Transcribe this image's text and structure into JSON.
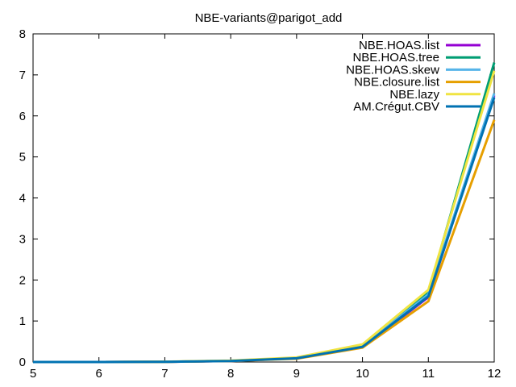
{
  "chart_data": {
    "type": "line",
    "title": "NBE-variants@parigot_add",
    "xlabel": "",
    "ylabel": "",
    "xlim": [
      5,
      12
    ],
    "ylim": [
      0,
      8
    ],
    "x_ticks": [
      "5",
      "6",
      "7",
      "8",
      "9",
      "10",
      "11",
      "12"
    ],
    "y_ticks": [
      "0",
      "1",
      "2",
      "3",
      "4",
      "5",
      "6",
      "7",
      "8"
    ],
    "grid": false,
    "legend_position": "top-right",
    "x": [
      5,
      6,
      7,
      8,
      9,
      10,
      11,
      12
    ],
    "series": [
      {
        "name": "NBE.HOAS.list",
        "color": "#9400d3",
        "values": [
          0,
          0,
          0.005,
          0.025,
          0.09,
          0.36,
          1.58,
          6.5
        ]
      },
      {
        "name": "NBE.HOAS.tree",
        "color": "#009e73",
        "values": [
          0,
          0,
          0.006,
          0.03,
          0.1,
          0.4,
          1.7,
          7.3
        ]
      },
      {
        "name": "NBE.HOAS.skew",
        "color": "#56b4e9",
        "values": [
          0,
          0,
          0.006,
          0.028,
          0.1,
          0.39,
          1.65,
          6.55
        ]
      },
      {
        "name": "NBE.closure.list",
        "color": "#e69f00",
        "values": [
          0,
          0,
          0.005,
          0.024,
          0.08,
          0.35,
          1.48,
          5.9
        ]
      },
      {
        "name": "NBE.lazy",
        "color": "#f0e442",
        "values": [
          0,
          0,
          0.007,
          0.034,
          0.11,
          0.43,
          1.76,
          7.1
        ]
      },
      {
        "name": "AM.Crégut.CBV",
        "color": "#0072b2",
        "values": [
          0,
          0,
          0.005,
          0.026,
          0.09,
          0.37,
          1.6,
          6.45
        ]
      }
    ]
  }
}
